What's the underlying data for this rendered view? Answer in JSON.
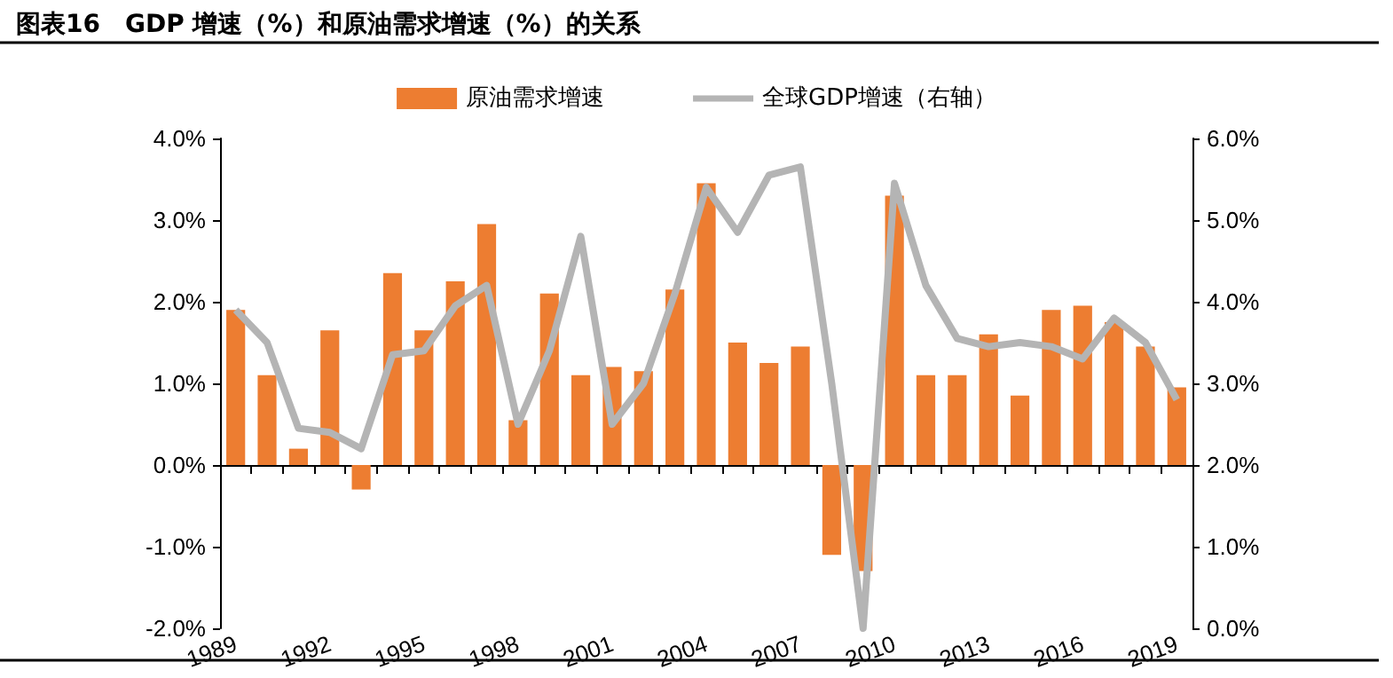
{
  "chart_data": {
    "type": "bar",
    "title": "图表16　GDP 增速（%）和原油需求增速（%）的关系",
    "categories": [
      "1989",
      null,
      null,
      "1992",
      null,
      null,
      "1995",
      null,
      null,
      "1998",
      null,
      null,
      "2001",
      null,
      null,
      "2004",
      null,
      null,
      "2007",
      null,
      null,
      "2010",
      null,
      null,
      "2013",
      null,
      null,
      "2016",
      null,
      null,
      "2019"
    ],
    "series": [
      {
        "name": "原油需求增速",
        "type": "bar",
        "color": "#ed7d31",
        "values": [
          1.9,
          1.1,
          0.2,
          1.65,
          -0.3,
          2.35,
          1.65,
          2.25,
          2.95,
          0.55,
          2.1,
          1.1,
          1.2,
          1.15,
          2.15,
          3.45,
          1.5,
          1.25,
          1.45,
          -1.1,
          -1.3,
          3.3,
          1.1,
          1.1,
          1.6,
          0.85,
          1.9,
          1.95,
          1.75,
          1.45,
          0.95
        ]
      },
      {
        "name": "全球GDP增速（右轴）",
        "type": "line",
        "axis": "y2",
        "color": "#b4b4b4",
        "values": [
          3.9,
          3.5,
          2.45,
          2.4,
          2.2,
          3.35,
          3.4,
          3.95,
          4.2,
          2.5,
          3.4,
          4.8,
          2.5,
          3.0,
          4.1,
          5.4,
          4.85,
          5.55,
          5.65,
          3.0,
          0.0,
          5.45,
          4.2,
          3.55,
          3.45,
          3.5,
          3.45,
          3.3,
          3.8,
          3.5,
          2.8
        ]
      }
    ],
    "ylim": [
      -2,
      4
    ],
    "yticks": [
      {
        "value": -2,
        "label": "-2.0%"
      },
      {
        "value": -1,
        "label": "-1.0%"
      },
      {
        "value": 0,
        "label": "0.0%"
      },
      {
        "value": 1,
        "label": "1.0%"
      },
      {
        "value": 2,
        "label": "2.0%"
      },
      {
        "value": 3,
        "label": "3.0%"
      },
      {
        "value": 4,
        "label": "4.0%"
      }
    ],
    "y2lim": [
      0,
      6
    ],
    "y2ticks": [
      {
        "value": 0,
        "label": "0.0%"
      },
      {
        "value": 1,
        "label": "1.0%"
      },
      {
        "value": 2,
        "label": "2.0%"
      },
      {
        "value": 3,
        "label": "3.0%"
      },
      {
        "value": 4,
        "label": "4.0%"
      },
      {
        "value": 5,
        "label": "5.0%"
      },
      {
        "value": 6,
        "label": "6.0%"
      }
    ],
    "legend": "top",
    "marker": "none",
    "line_style": "solid"
  }
}
